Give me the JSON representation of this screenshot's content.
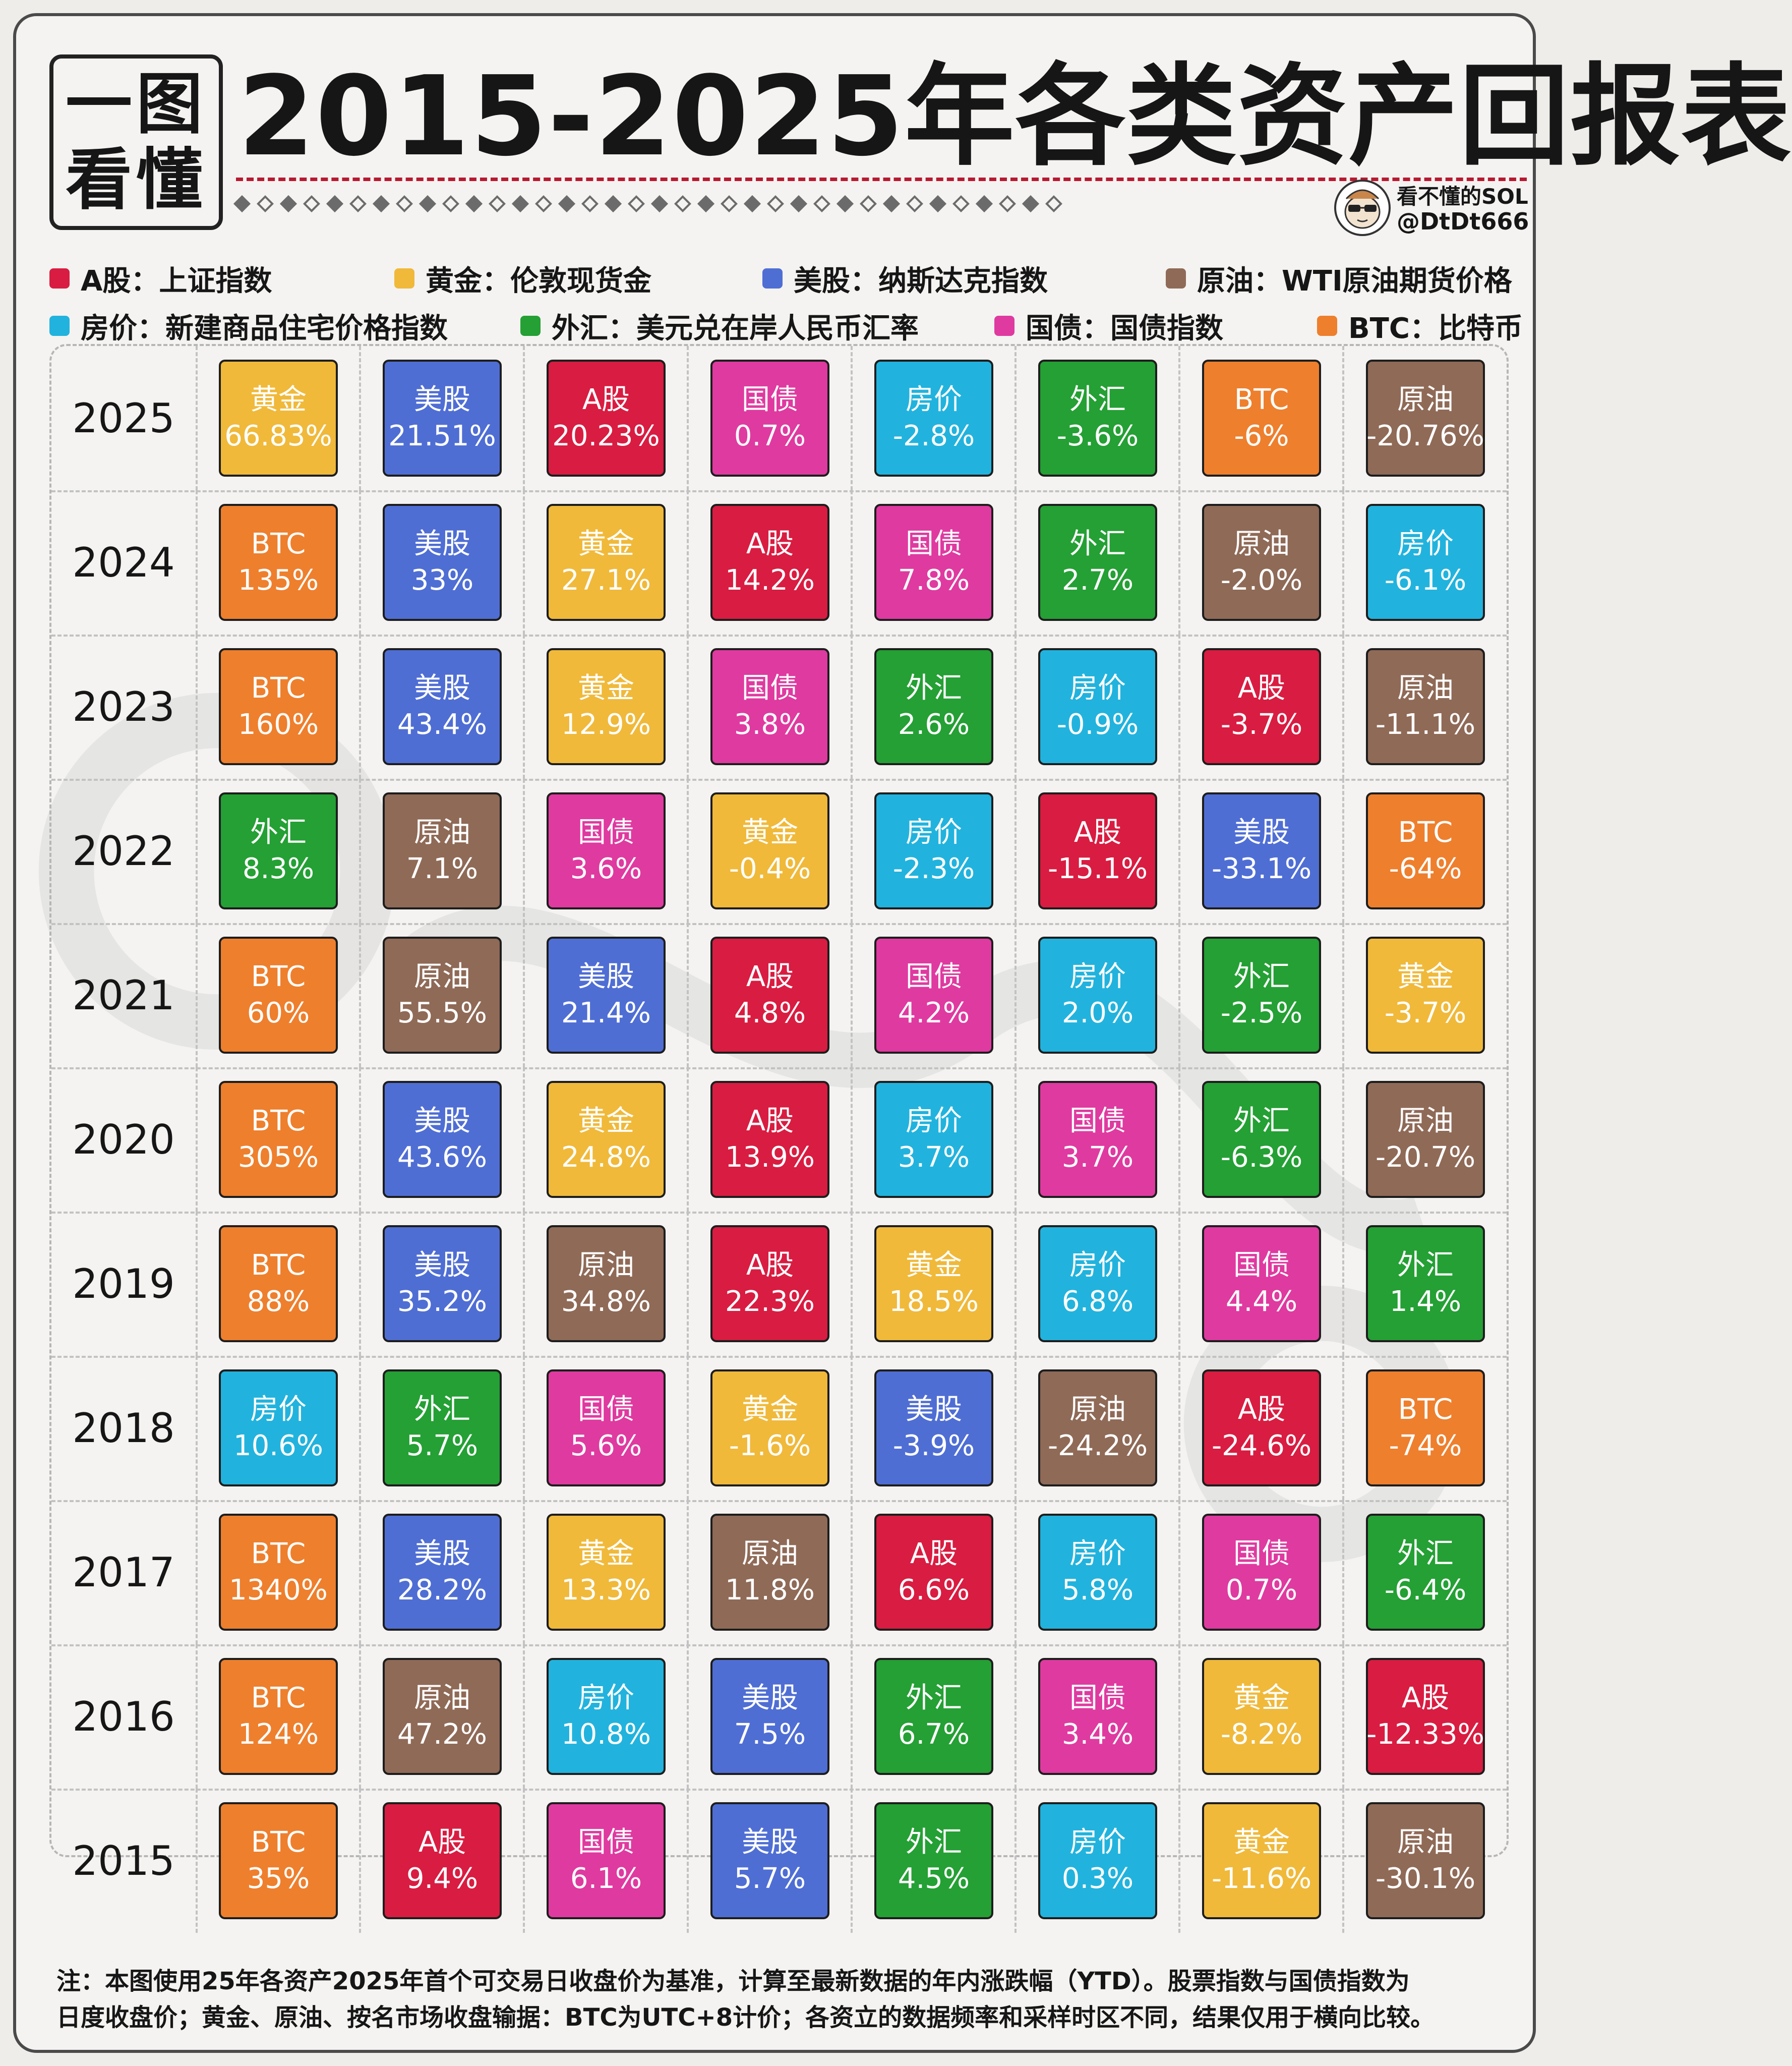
{
  "header": {
    "badge_line1": "一图",
    "badge_line2": "看懂",
    "title": "2015-2025年各类资产回报表",
    "author_name": "看不懂的SOL",
    "author_handle": "@DtDt666"
  },
  "colors": {
    "A股": "#d91c41",
    "黄金": "#f0b93a",
    "美股": "#4f6ed4",
    "原油": "#8f6a57",
    "房价": "#21b3dd",
    "外汇": "#24a034",
    "国债": "#df3aa0",
    "BTC": "#ee7f2d"
  },
  "legend": [
    {
      "asset": "A股",
      "label": "A股：上证指数"
    },
    {
      "asset": "黄金",
      "label": "黄金：伦敦现货金"
    },
    {
      "asset": "美股",
      "label": "美股：纳斯达克指数"
    },
    {
      "asset": "原油",
      "label": "原油：WTI原油期货价格"
    },
    {
      "asset": "房价",
      "label": "房价：新建商品住宅价格指数"
    },
    {
      "asset": "外汇",
      "label": "外汇：美元兑在岸人民币汇率"
    },
    {
      "asset": "国债",
      "label": "国债：国债指数"
    },
    {
      "asset": "BTC",
      "label": "BTC：比特币"
    }
  ],
  "rows": [
    {
      "year": "2025",
      "cells": [
        [
          "黄金",
          "66.83%"
        ],
        [
          "美股",
          "21.51%"
        ],
        [
          "A股",
          "20.23%"
        ],
        [
          "国债",
          "0.7%"
        ],
        [
          "房价",
          "-2.8%"
        ],
        [
          "外汇",
          "-3.6%"
        ],
        [
          "BTC",
          "-6%"
        ],
        [
          "原油",
          "-20.76%"
        ]
      ]
    },
    {
      "year": "2024",
      "cells": [
        [
          "BTC",
          "135%"
        ],
        [
          "美股",
          "33%"
        ],
        [
          "黄金",
          "27.1%"
        ],
        [
          "A股",
          "14.2%"
        ],
        [
          "国债",
          "7.8%"
        ],
        [
          "外汇",
          "2.7%"
        ],
        [
          "原油",
          "-2.0%"
        ],
        [
          "房价",
          "-6.1%"
        ]
      ]
    },
    {
      "year": "2023",
      "cells": [
        [
          "BTC",
          "160%"
        ],
        [
          "美股",
          "43.4%"
        ],
        [
          "黄金",
          "12.9%"
        ],
        [
          "国债",
          "3.8%"
        ],
        [
          "外汇",
          "2.6%"
        ],
        [
          "房价",
          "-0.9%"
        ],
        [
          "A股",
          "-3.7%"
        ],
        [
          "原油",
          "-11.1%"
        ]
      ]
    },
    {
      "year": "2022",
      "cells": [
        [
          "外汇",
          "8.3%"
        ],
        [
          "原油",
          "7.1%"
        ],
        [
          "国债",
          "3.6%"
        ],
        [
          "黄金",
          "-0.4%"
        ],
        [
          "房价",
          "-2.3%"
        ],
        [
          "A股",
          "-15.1%"
        ],
        [
          "美股",
          "-33.1%"
        ],
        [
          "BTC",
          "-64%"
        ]
      ]
    },
    {
      "year": "2021",
      "cells": [
        [
          "BTC",
          "60%"
        ],
        [
          "原油",
          "55.5%"
        ],
        [
          "美股",
          "21.4%"
        ],
        [
          "A股",
          "4.8%"
        ],
        [
          "国债",
          "4.2%"
        ],
        [
          "房价",
          "2.0%"
        ],
        [
          "外汇",
          "-2.5%"
        ],
        [
          "黄金",
          "-3.7%"
        ]
      ]
    },
    {
      "year": "2020",
      "cells": [
        [
          "BTC",
          "305%"
        ],
        [
          "美股",
          "43.6%"
        ],
        [
          "黄金",
          "24.8%"
        ],
        [
          "A股",
          "13.9%"
        ],
        [
          "房价",
          "3.7%"
        ],
        [
          "国债",
          "3.7%"
        ],
        [
          "外汇",
          "-6.3%"
        ],
        [
          "原油",
          "-20.7%"
        ]
      ]
    },
    {
      "year": "2019",
      "cells": [
        [
          "BTC",
          "88%"
        ],
        [
          "美股",
          "35.2%"
        ],
        [
          "原油",
          "34.8%"
        ],
        [
          "A股",
          "22.3%"
        ],
        [
          "黄金",
          "18.5%"
        ],
        [
          "房价",
          "6.8%"
        ],
        [
          "国债",
          "4.4%"
        ],
        [
          "外汇",
          "1.4%"
        ]
      ]
    },
    {
      "year": "2018",
      "cells": [
        [
          "房价",
          "10.6%"
        ],
        [
          "外汇",
          "5.7%"
        ],
        [
          "国债",
          "5.6%"
        ],
        [
          "黄金",
          "-1.6%"
        ],
        [
          "美股",
          "-3.9%"
        ],
        [
          "原油",
          "-24.2%"
        ],
        [
          "A股",
          "-24.6%"
        ],
        [
          "BTC",
          "-74%"
        ]
      ]
    },
    {
      "year": "2017",
      "cells": [
        [
          "BTC",
          "1340%"
        ],
        [
          "美股",
          "28.2%"
        ],
        [
          "黄金",
          "13.3%"
        ],
        [
          "原油",
          "11.8%"
        ],
        [
          "A股",
          "6.6%"
        ],
        [
          "房价",
          "5.8%"
        ],
        [
          "国债",
          "0.7%"
        ],
        [
          "外汇",
          "-6.4%"
        ]
      ]
    },
    {
      "year": "2016",
      "cells": [
        [
          "BTC",
          "124%"
        ],
        [
          "原油",
          "47.2%"
        ],
        [
          "房价",
          "10.8%"
        ],
        [
          "美股",
          "7.5%"
        ],
        [
          "外汇",
          "6.7%"
        ],
        [
          "国债",
          "3.4%"
        ],
        [
          "黄金",
          "-8.2%"
        ],
        [
          "A股",
          "-12.33%"
        ]
      ]
    },
    {
      "year": "2015",
      "cells": [
        [
          "BTC",
          "35%"
        ],
        [
          "A股",
          "9.4%"
        ],
        [
          "国债",
          "6.1%"
        ],
        [
          "美股",
          "5.7%"
        ],
        [
          "外汇",
          "4.5%"
        ],
        [
          "房价",
          "0.3%"
        ],
        [
          "黄金",
          "-11.6%"
        ],
        [
          "原油",
          "-30.1%"
        ]
      ]
    }
  ],
  "footnote_line1": "注：本图使用25年各资产2025年首个可交易日收盘价为基准，计算至最新数据的年内涨跌幅（YTD）。股票指数与国债指数为",
  "footnote_line2": "日度收盘价；黄金、原油、按名市场收盘输据：BTC为UTC+8计价；各资立的数据频率和采样时区不同，结果仅用于横向比较。"
}
